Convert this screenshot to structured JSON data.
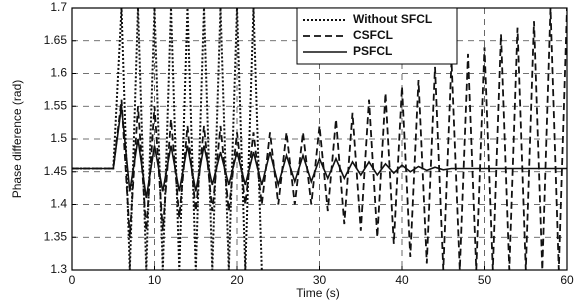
{
  "chart_data": {
    "type": "line",
    "xlabel": "Time (s)",
    "ylabel": "Phase difference (rad)",
    "x": [
      0,
      5,
      6,
      7,
      8,
      9,
      10,
      11,
      12,
      13,
      14,
      15,
      16,
      17,
      18,
      19,
      20,
      21,
      22,
      23,
      24,
      25,
      26,
      27,
      28,
      29,
      30,
      31,
      32,
      33,
      34,
      35,
      36,
      37,
      38,
      39,
      40,
      41,
      42,
      43,
      44,
      45,
      46,
      47,
      48,
      49,
      50,
      51,
      52,
      53,
      54,
      55,
      56,
      57,
      58,
      59,
      60
    ],
    "series": [
      {
        "name": "Without SFCL",
        "color": "#111111",
        "dash": "dotted",
        "values": [
          1.455,
          1.455,
          1.7,
          1.3,
          1.7,
          1.3,
          1.7,
          1.3,
          1.7,
          1.3,
          1.7,
          1.3,
          1.7,
          1.3,
          1.7,
          1.3,
          1.7,
          1.3,
          1.7,
          1.3,
          null,
          null,
          null,
          null,
          null,
          null,
          null,
          null,
          null,
          null,
          null,
          null,
          null,
          null,
          null,
          null,
          null,
          null,
          null,
          null,
          null,
          null,
          null,
          null,
          null,
          null,
          null,
          null,
          null,
          null,
          null,
          null,
          null,
          null,
          null,
          null,
          null
        ]
      },
      {
        "name": "CSFCL",
        "color": "#111111",
        "dash": "dashed",
        "values": [
          1.455,
          1.455,
          1.56,
          1.35,
          1.55,
          1.36,
          1.55,
          1.36,
          1.53,
          1.38,
          1.52,
          1.39,
          1.52,
          1.39,
          1.52,
          1.39,
          1.51,
          1.4,
          1.51,
          1.4,
          1.51,
          1.4,
          1.51,
          1.4,
          1.51,
          1.4,
          1.52,
          1.39,
          1.53,
          1.37,
          1.54,
          1.36,
          1.56,
          1.35,
          1.57,
          1.34,
          1.58,
          1.32,
          1.59,
          1.31,
          1.61,
          1.3,
          1.62,
          1.3,
          1.63,
          1.3,
          1.64,
          1.3,
          1.66,
          1.3,
          1.67,
          1.3,
          1.68,
          1.3,
          1.7,
          1.3,
          1.7
        ]
      },
      {
        "name": "PSFCL",
        "color": "#111111",
        "dash": "solid",
        "values": [
          1.455,
          1.455,
          1.55,
          1.42,
          1.5,
          1.41,
          1.49,
          1.42,
          1.49,
          1.42,
          1.49,
          1.42,
          1.49,
          1.43,
          1.48,
          1.43,
          1.48,
          1.43,
          1.48,
          1.43,
          1.48,
          1.43,
          1.475,
          1.435,
          1.475,
          1.435,
          1.47,
          1.44,
          1.47,
          1.44,
          1.465,
          1.445,
          1.465,
          1.445,
          1.462,
          1.448,
          1.46,
          1.45,
          1.458,
          1.452,
          1.457,
          1.453,
          1.455,
          1.455,
          1.455,
          1.455,
          1.455,
          1.455,
          1.455,
          1.455,
          1.455,
          1.455,
          1.455,
          1.455,
          1.455,
          1.455,
          1.455
        ]
      }
    ],
    "xlim": [
      0,
      60
    ],
    "xticks": [
      0,
      10,
      20,
      30,
      40,
      50,
      60
    ],
    "ylim": [
      1.3,
      1.7
    ],
    "yticks": [
      1.3,
      1.35,
      1.4,
      1.45,
      1.5,
      1.55,
      1.6,
      1.65,
      1.7
    ],
    "grid": true,
    "legend": "top-right"
  }
}
